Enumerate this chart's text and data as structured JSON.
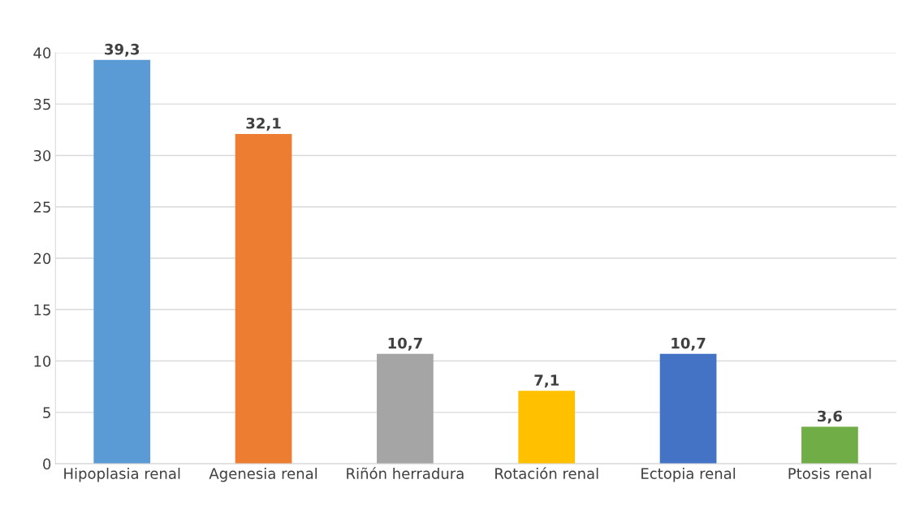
{
  "chart_data": {
    "type": "bar",
    "categories": [
      "Hipoplasia renal",
      "Agenesia renal",
      "Riñón herradura",
      "Rotación renal",
      "Ectopia renal",
      "Ptosis renal"
    ],
    "values": [
      39.3,
      32.1,
      10.7,
      7.1,
      10.7,
      3.6
    ],
    "colors": [
      "#5b9bd5",
      "#ed7d31",
      "#a5a5a5",
      "#ffc000",
      "#4472c4",
      "#70ad47"
    ],
    "value_labels": [
      "39,3",
      "32,1",
      "10,7",
      "7,1",
      "10,7",
      "3,6"
    ],
    "ylim": [
      0,
      40
    ],
    "yticks": [
      0,
      5,
      10,
      15,
      20,
      25,
      30,
      35,
      40
    ],
    "grid": "y"
  }
}
